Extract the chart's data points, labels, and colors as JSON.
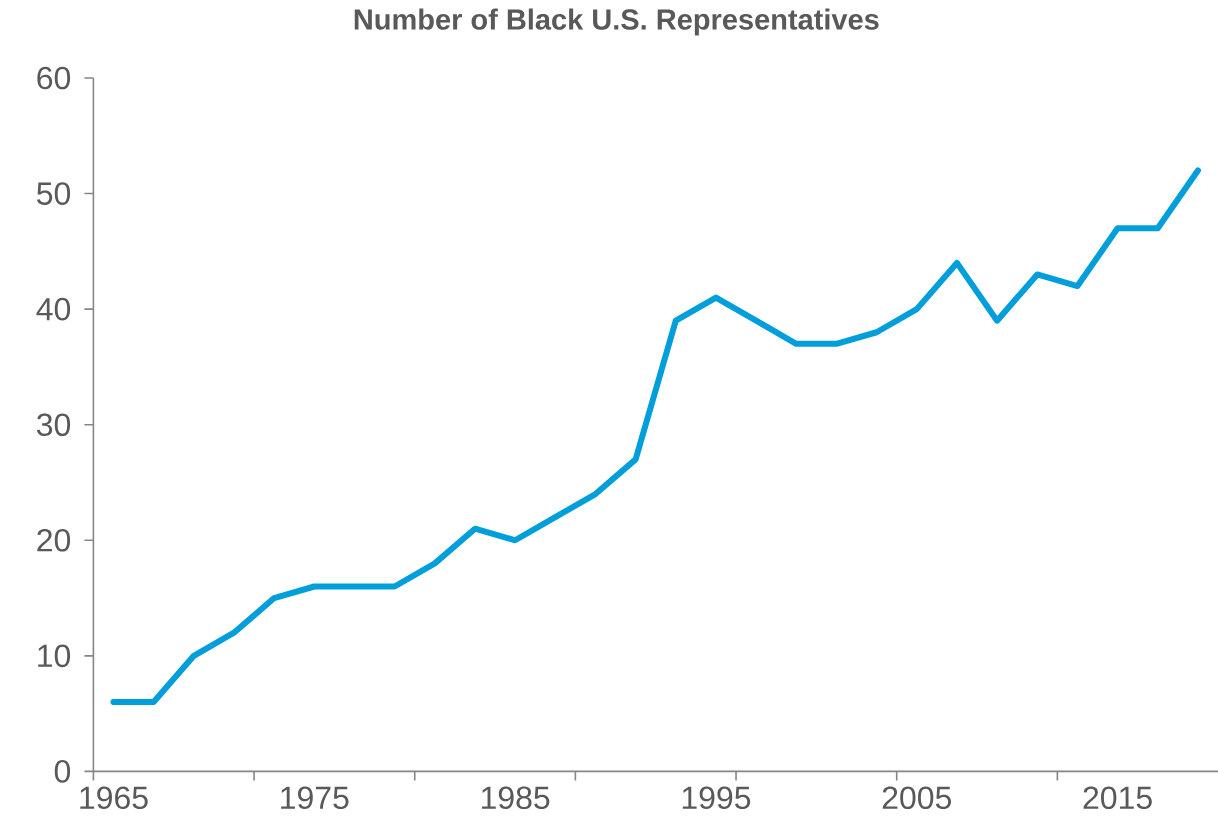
{
  "chart_data": {
    "type": "line",
    "title": "Number of Black U.S. Representatives",
    "categories": [
      "1965",
      null,
      null,
      null,
      null,
      "1975",
      null,
      null,
      null,
      null,
      "1985",
      null,
      null,
      null,
      null,
      "1995",
      null,
      null,
      null,
      null,
      "2005",
      null,
      null,
      null,
      null,
      "2015",
      null,
      null
    ],
    "series": [
      {
        "color": "#009fdb",
        "values": [
          6,
          6,
          10,
          12,
          15,
          16,
          16,
          16,
          18,
          21,
          20,
          22,
          24,
          27,
          39,
          41,
          39,
          37,
          37,
          38,
          40,
          44,
          39,
          43,
          42,
          47,
          47,
          52
        ]
      }
    ],
    "ylim": [
      0,
      60
    ],
    "yticks": [
      0,
      10,
      20,
      30,
      40,
      50,
      60
    ]
  }
}
